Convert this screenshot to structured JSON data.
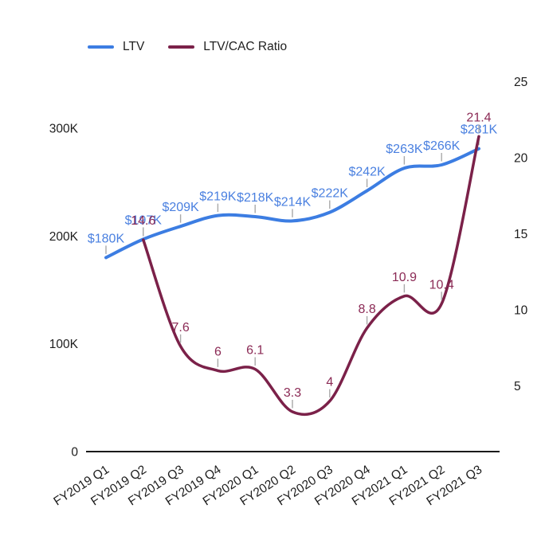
{
  "chart_data": {
    "type": "line",
    "title": "",
    "smooth": true,
    "grid": false,
    "legend": {
      "position": "top",
      "items": [
        {
          "label": "LTV",
          "color": "#3c7de2"
        },
        {
          "label": "LTV/CAC Ratio",
          "color": "#7b2149"
        }
      ]
    },
    "categories": [
      "FY2019 Q1",
      "FY2019 Q2",
      "FY2019 Q3",
      "FY2019 Q4",
      "FY2020 Q1",
      "FY2020 Q2",
      "FY2020 Q3",
      "FY2020 Q4",
      "FY2021 Q1",
      "FY2021 Q2",
      "FY2021 Q3"
    ],
    "series": [
      {
        "name": "LTV",
        "axis": "left",
        "color": "#3c7de2",
        "label_color": "#4a80e0",
        "values": [
          180000,
          197000,
          209000,
          219000,
          218000,
          214000,
          222000,
          242000,
          263000,
          266000,
          281000
        ],
        "point_labels": [
          "$180K",
          "$197K",
          "$209K",
          "$219K",
          "$218K",
          "$214K",
          "$222K",
          "$242K",
          "$263K",
          "$266K",
          "$281K"
        ]
      },
      {
        "name": "LTV/CAC Ratio",
        "axis": "right",
        "color": "#7b2149",
        "label_color": "#8b2a55",
        "values": [
          null,
          14.6,
          7.6,
          6,
          6.1,
          3.3,
          4,
          8.8,
          10.9,
          10.4,
          21.4
        ],
        "point_labels": [
          null,
          "14.6",
          "7.6",
          "6",
          "6.1",
          "3.3",
          "4",
          "8.8",
          "10.9",
          "10.4",
          "21.4"
        ]
      }
    ],
    "y_left": {
      "tick_labels": [
        "0",
        "100K",
        "200K",
        "300K"
      ],
      "tick_values": [
        0,
        100000,
        200000,
        300000
      ],
      "range": [
        0,
        300000
      ]
    },
    "y_right": {
      "tick_labels": [
        "5",
        "10",
        "15",
        "20",
        "25"
      ],
      "tick_values": [
        5,
        10,
        15,
        20,
        25
      ],
      "range": [
        0,
        25
      ]
    }
  }
}
